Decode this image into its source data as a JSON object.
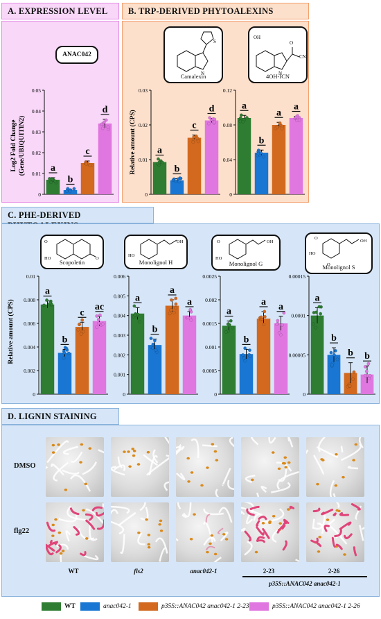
{
  "colors": {
    "wt": "#2e7d32",
    "anac042_1": "#1976d2",
    "p35s_2_23": "#d2691e",
    "p35s_2_26": "#e077e0",
    "panelA_bg": "#f8d7f8",
    "panelA_border": "#e58de5",
    "panelB_bg": "#fde0cc",
    "panelB_border": "#f2a06e",
    "panelC_bg": "#d6e6f8",
    "panelC_border": "#8cb3dc"
  },
  "sections": {
    "a_title": "A. EXPRESSION LEVEL",
    "b_title": "B. TRP-DERIVED PHYTOALEXINS",
    "c_title": "C. PHE-DERIVED PHYTOALEXINS",
    "d_title": "D. LIGNIN STAINING"
  },
  "compounds": {
    "anac042": "ANAC042",
    "camalexin": "Camalexin",
    "oh_icn": "4OH-ICN",
    "oh_icn_oh": "OH",
    "oh_icn_o": "O",
    "oh_icn_cn": "CN",
    "nh": "N",
    "nh_h": "H",
    "s_atom": "S",
    "scopoletin": "Scopoletin",
    "monolignol_h": "Monolignol H",
    "monolignol_g": "Monolignol G",
    "monolignol_s": "Monolignol S",
    "ho": "HO",
    "oh": "OH",
    "o": "O"
  },
  "axis_labels": {
    "a_ylabel_1": "Log2 Fold Change",
    "a_ylabel_2": "(Gene/UBIQUITIN2)",
    "b_ylabel": "Relative amount (CPS)",
    "c_ylabel": "Relative amount (CPS)"
  },
  "chart_data": [
    {
      "type": "bar",
      "id": "expression_anac042",
      "categories": [
        "WT",
        "anac042-1",
        "p35S::ANAC042 anac042-1 2-23",
        "p35S::ANAC042 anac042-1 2-26"
      ],
      "values": [
        0.007,
        0.002,
        0.015,
        0.034
      ],
      "errors": [
        0.001,
        0.0005,
        0.001,
        0.002
      ],
      "letters": [
        "a",
        "b",
        "c",
        "d"
      ],
      "ylim": [
        0,
        0.05
      ],
      "ticks": [
        "0",
        "0.01",
        "0.02",
        "0.03",
        "0.04",
        "0.05"
      ]
    },
    {
      "type": "bar",
      "id": "camalexin",
      "categories": [
        "WT",
        "anac042-1",
        "p35S::ANAC042 anac042-1 2-23",
        "p35S::ANAC042 anac042-1 2-26"
      ],
      "values": [
        0.0093,
        0.004,
        0.0163,
        0.0213
      ],
      "errors": [
        0.0006,
        0.0005,
        0.0008,
        0.0006
      ],
      "letters": [
        "a",
        "b",
        "c",
        "d"
      ],
      "ylim": [
        0,
        0.03
      ],
      "ticks": [
        "0",
        "0.01",
        "0.02",
        "0.03"
      ]
    },
    {
      "type": "bar",
      "id": "oh_icn",
      "categories": [
        "WT",
        "anac042-1",
        "p35S::ANAC042 anac042-1 2-23",
        "p35S::ANAC042 anac042-1 2-26"
      ],
      "values": [
        0.088,
        0.048,
        0.08,
        0.088
      ],
      "errors": [
        0.003,
        0.003,
        0.003,
        0.002
      ],
      "letters": [
        "a",
        "b",
        "a",
        "a"
      ],
      "ylim": [
        0,
        0.12
      ],
      "ticks": [
        "0",
        "0.04",
        "0.08",
        "0.12"
      ]
    },
    {
      "type": "bar",
      "id": "scopoletin",
      "categories": [
        "WT",
        "anac042-1",
        "p35S::ANAC042 anac042-1 2-23",
        "p35S::ANAC042 anac042-1 2-26"
      ],
      "values": [
        0.0076,
        0.0035,
        0.0057,
        0.0062
      ],
      "errors": [
        0.0003,
        0.0003,
        0.0004,
        0.0004
      ],
      "letters": [
        "a",
        "b",
        "c",
        "ac"
      ],
      "ylim": [
        0,
        0.01
      ],
      "ticks": [
        "0",
        "0.002",
        "0.004",
        "0.006",
        "0.008",
        "0.01"
      ]
    },
    {
      "type": "bar",
      "id": "monolignol_h",
      "categories": [
        "WT",
        "anac042-1",
        "p35S::ANAC042 anac042-1 2-23",
        "p35S::ANAC042 anac042-1 2-26"
      ],
      "values": [
        0.0041,
        0.0025,
        0.0045,
        0.004
      ],
      "errors": [
        0.0003,
        0.0003,
        0.0003,
        0.0002
      ],
      "letters": [
        "a",
        "b",
        "a",
        "a"
      ],
      "ylim": [
        0,
        0.006
      ],
      "ticks": [
        "0",
        "0.001",
        "0.002",
        "0.003",
        "0.004",
        "0.005",
        "0.006"
      ]
    },
    {
      "type": "bar",
      "id": "monolignol_g",
      "categories": [
        "WT",
        "anac042-1",
        "p35S::ANAC042 anac042-1 2-23",
        "p35S::ANAC042 anac042-1 2-26"
      ],
      "values": [
        0.00145,
        0.00085,
        0.0016,
        0.0015
      ],
      "errors": [
        0.0001,
        0.0001,
        0.00015,
        0.00015
      ],
      "letters": [
        "a",
        "b",
        "a",
        "a"
      ],
      "ylim": [
        0,
        0.0025
      ],
      "ticks": [
        "0",
        "0.0005",
        "0.001",
        "0.0015",
        "0.002",
        "0.0025"
      ]
    },
    {
      "type": "bar",
      "id": "monolignol_s",
      "categories": [
        "WT",
        "anac042-1",
        "p35S::ANAC042 anac042-1 2-23",
        "p35S::ANAC042 anac042-1 2-26"
      ],
      "values": [
        0.0001,
        5e-05,
        2.7e-05,
        2.5e-05
      ],
      "errors": [
        1e-05,
        9e-06,
        1.3e-05,
        1.1e-05
      ],
      "letters": [
        "a",
        "b",
        "b",
        "b"
      ],
      "ylim": [
        0,
        0.00015
      ],
      "ticks": [
        "0",
        "0.00005",
        "0.0001",
        "0.00015"
      ]
    }
  ],
  "lignin": {
    "row_labels": [
      "DMSO",
      "flg22"
    ],
    "col_labels": [
      "WT",
      "fls2",
      "anac042-1",
      "2-23",
      "2-26"
    ],
    "group_label": "p35S::ANAC042 anac042-1",
    "stain": [
      "none",
      "none",
      "none",
      "none",
      "none",
      "strong",
      "none",
      "weak",
      "strong",
      "strong"
    ]
  },
  "legend": [
    {
      "label": "WT",
      "color": "#2e7d32"
    },
    {
      "label": "anac042-1",
      "color": "#1976d2"
    },
    {
      "label": "p35S::ANAC042 anac042-1 2-23",
      "color": "#d2691e"
    },
    {
      "label": "p35S::ANAC042 anac042-1 2-26",
      "color": "#e077e0"
    }
  ]
}
